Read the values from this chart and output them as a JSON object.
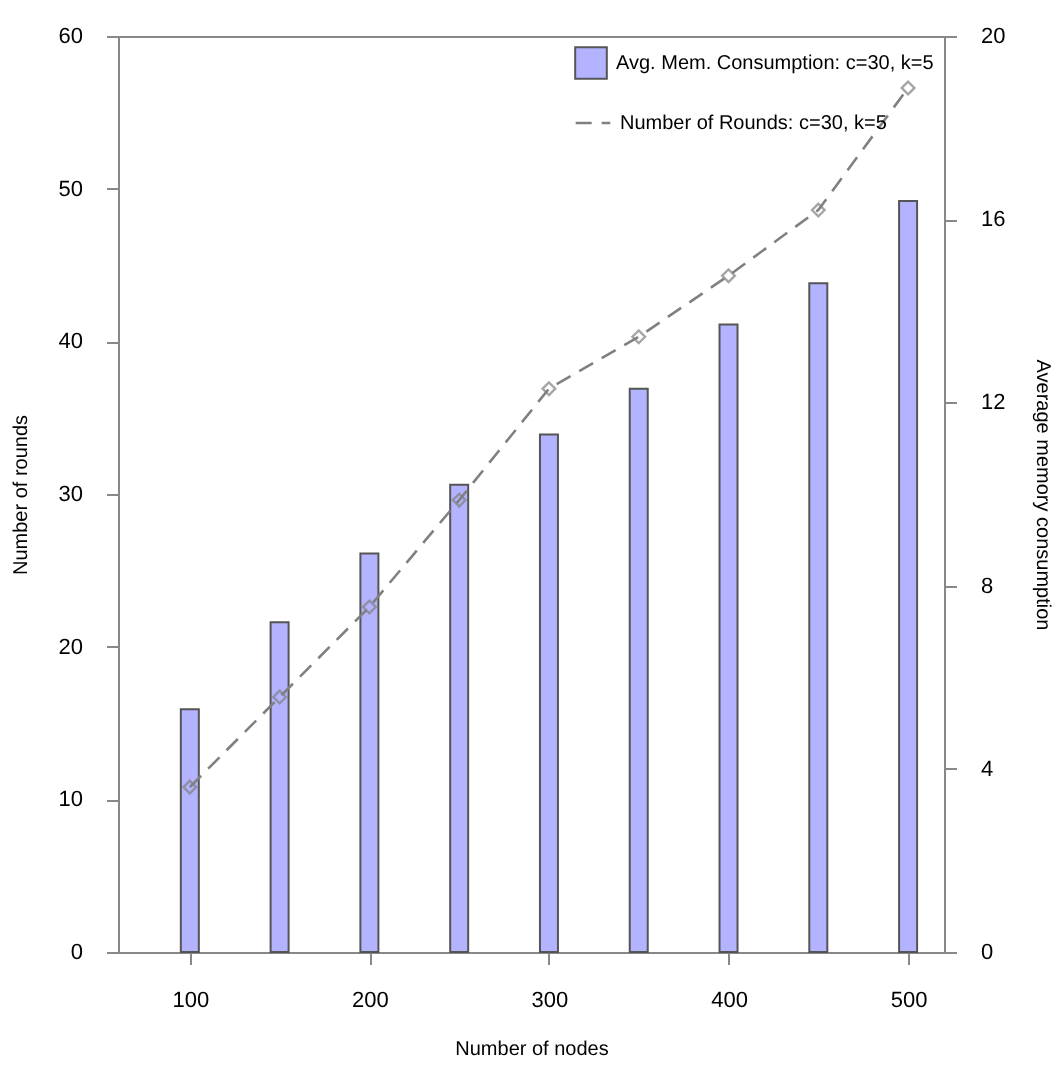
{
  "chart_data": {
    "type": "bar",
    "xlabel": "Number of nodes",
    "ylabel": "Number of rounds",
    "y2label": "Average memory consumption",
    "x": [
      100,
      150,
      200,
      250,
      300,
      350,
      400,
      450,
      500
    ],
    "xlim": [
      60,
      520
    ],
    "xticks": [
      100,
      200,
      300,
      400,
      500
    ],
    "ylim": [
      0,
      60
    ],
    "yticks": [
      0,
      10,
      20,
      30,
      40,
      50,
      60
    ],
    "y2lim": [
      0,
      20
    ],
    "y2ticks": [
      0,
      4,
      8,
      12,
      16,
      20
    ],
    "legend": "top right",
    "grid": false,
    "series": [
      {
        "name": "Avg. Mem. Consumption: c=30, k=5",
        "axis": "y2",
        "color": "#b3b3ff",
        "values": [
          5.3,
          7.2,
          8.7,
          10.2,
          11.3,
          12.3,
          13.7,
          14.6,
          16.4
        ]
      },
      {
        "name": "Number of Rounds: c=30, k=5",
        "type": "line",
        "color": "#808080",
        "marker": "diamond",
        "line_style": "dashed",
        "values": [
          10.8,
          16.7,
          22.6,
          29.6,
          36.9,
          40.3,
          44.3,
          48.6,
          56.6
        ]
      }
    ]
  }
}
